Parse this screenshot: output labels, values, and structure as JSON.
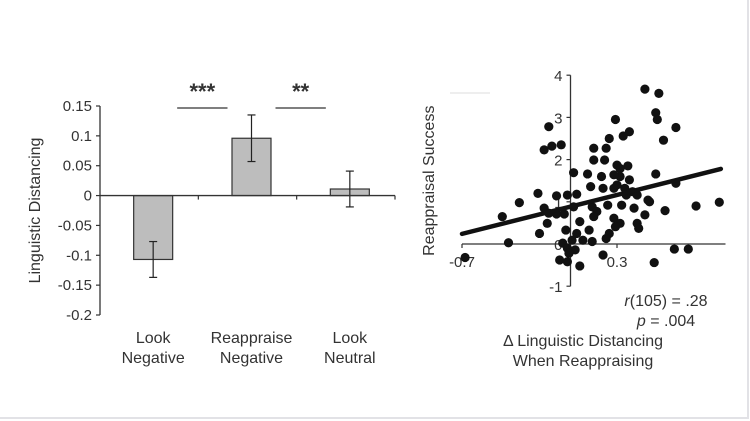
{
  "chart_data": [
    {
      "type": "bar",
      "ylabel": "Linguistic Distancing",
      "xlabel": "",
      "ylim": [
        -0.2,
        0.15
      ],
      "yticks": [
        "0.15",
        "0.1",
        "0.05",
        "0",
        "-0.05",
        "-0.1",
        "-0.15",
        "-0.2"
      ],
      "categories": [
        [
          "Look",
          "Negative"
        ],
        [
          "Reappraise",
          "Negative"
        ],
        [
          "Look",
          "Neutral"
        ]
      ],
      "values": [
        -0.107,
        0.096,
        0.011
      ],
      "error": [
        0.03,
        0.039,
        0.03
      ],
      "bar_color": "#bdbdbd",
      "significance": [
        {
          "between": [
            0,
            1
          ],
          "label": "***"
        },
        {
          "between": [
            1,
            2
          ],
          "label": "**"
        }
      ],
      "grid": false
    },
    {
      "type": "scatter",
      "ylabel": "Reappraisal Success",
      "xlabel": [
        "Δ Linguistic Distancing",
        "When Reappraising"
      ],
      "xlim": [
        -0.7,
        1.0
      ],
      "ylim": [
        -1,
        4
      ],
      "xticks": [
        -0.7,
        0.3
      ],
      "xtick_labels": [
        "-0.7",
        "0.3"
      ],
      "yticks": [
        4,
        3,
        2,
        1,
        0,
        -1
      ],
      "ytick_labels": [
        "4",
        "3",
        "2",
        "1",
        "0",
        "-1"
      ],
      "fit_line": {
        "x": [
          -0.7,
          0.97
        ],
        "y": [
          0.24,
          1.78
        ]
      },
      "annotation": {
        "r_symbol": "r",
        "r_text": "(105) = .28",
        "p_symbol": "p",
        "p_text": " = .004"
      },
      "grid": false,
      "points": [
        [
          0.48,
          3.67
        ],
        [
          0.57,
          3.57
        ],
        [
          0.55,
          3.11
        ],
        [
          0.56,
          2.95
        ],
        [
          0.68,
          2.76
        ],
        [
          0.6,
          2.46
        ],
        [
          0.29,
          2.95
        ],
        [
          -0.14,
          2.78
        ],
        [
          0.38,
          2.66
        ],
        [
          0.34,
          2.56
        ],
        [
          0.25,
          2.5
        ],
        [
          -0.17,
          2.23
        ],
        [
          -0.12,
          2.32
        ],
        [
          -0.06,
          2.35
        ],
        [
          0.15,
          2.27
        ],
        [
          0.23,
          2.27
        ],
        [
          0.15,
          1.99
        ],
        [
          0.22,
          1.99
        ],
        [
          0.3,
          1.87
        ],
        [
          0.37,
          1.85
        ],
        [
          0.32,
          1.79
        ],
        [
          0.02,
          1.69
        ],
        [
          0.11,
          1.66
        ],
        [
          0.2,
          1.6
        ],
        [
          0.32,
          1.6
        ],
        [
          0.38,
          1.52
        ],
        [
          0.55,
          1.66
        ],
        [
          0.13,
          1.36
        ],
        [
          0.21,
          1.32
        ],
        [
          0.28,
          1.32
        ],
        [
          0.35,
          1.32
        ],
        [
          0.4,
          1.24
        ],
        [
          -0.21,
          1.2
        ],
        [
          -0.09,
          1.14
        ],
        [
          -0.02,
          1.16
        ],
        [
          0.04,
          1.18
        ],
        [
          0.43,
          1.16
        ],
        [
          0.36,
          1.16
        ],
        [
          0.5,
          1.04
        ],
        [
          -0.33,
          0.98
        ],
        [
          -0.17,
          0.85
        ],
        [
          -0.14,
          0.73
        ],
        [
          -0.09,
          0.71
        ],
        [
          -0.04,
          0.71
        ],
        [
          0.02,
          0.88
        ],
        [
          0.14,
          0.88
        ],
        [
          0.17,
          0.77
        ],
        [
          0.24,
          0.92
        ],
        [
          0.33,
          0.92
        ],
        [
          0.41,
          0.85
        ],
        [
          0.51,
          1.0
        ],
        [
          0.61,
          0.79
        ],
        [
          0.81,
          0.9
        ],
        [
          0.96,
          0.99
        ],
        [
          0.68,
          1.44
        ],
        [
          -0.44,
          0.65
        ],
        [
          -0.15,
          0.49
        ],
        [
          0.06,
          0.53
        ],
        [
          0.15,
          0.65
        ],
        [
          0.28,
          0.61
        ],
        [
          0.32,
          0.49
        ],
        [
          0.29,
          0.41
        ],
        [
          0.43,
          0.49
        ],
        [
          0.48,
          0.69
        ],
        [
          0.44,
          0.37
        ],
        [
          -0.2,
          0.25
        ],
        [
          -0.03,
          0.33
        ],
        [
          0.04,
          0.25
        ],
        [
          0.12,
          0.33
        ],
        [
          0.25,
          0.25
        ],
        [
          0.01,
          0.09
        ],
        [
          0.08,
          0.09
        ],
        [
          -0.4,
          0.03
        ],
        [
          -0.05,
          0.02
        ],
        [
          0.14,
          0.06
        ],
        [
          0.23,
          0.13
        ],
        [
          -0.02,
          -0.1
        ],
        [
          0.03,
          -0.14
        ],
        [
          -0.07,
          -0.38
        ],
        [
          -0.02,
          -0.42
        ],
        [
          0.06,
          -0.52
        ],
        [
          0.21,
          -0.26
        ],
        [
          -0.68,
          -0.32
        ],
        [
          0.67,
          -0.12
        ],
        [
          0.76,
          -0.12
        ],
        [
          0.54,
          -0.44
        ],
        [
          -0.01,
          -0.22
        ],
        [
          0.3,
          1.4
        ],
        [
          0.28,
          1.64
        ]
      ]
    }
  ]
}
